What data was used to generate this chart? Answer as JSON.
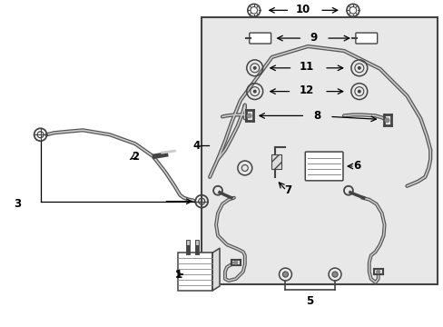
{
  "bg": "#ffffff",
  "box_fill": "#e8e8e8",
  "box_edge": "#444444",
  "part_dark": "#444444",
  "part_mid": "#888888",
  "part_light": "#cccccc",
  "label_fs": 8.5,
  "arrow_lw": 0.9
}
